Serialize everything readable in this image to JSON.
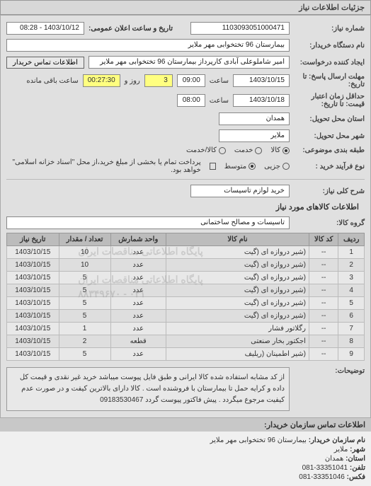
{
  "header": {
    "title": "جزئیات اطلاعات نیاز"
  },
  "form": {
    "req_number_label": "شماره نیاز:",
    "req_number": "1103093051000471",
    "announce_label": "تاریخ و ساعت اعلان عمومی:",
    "announce_value": "1403/10/12 - 08:28",
    "buyer_label": "نام دستگاه خریدار:",
    "buyer_value": "بیمارستان 96 تختخوابی مهر ملایر",
    "creator_label": "ایجاد کننده درخواست:",
    "creator_value": "امیر شاملوعلی آبادی کارپرداز بیمارستان 96 تختخوابی مهر ملایر",
    "contact_btn": "اطلاعات تماس خریدار",
    "send_deadline_label": "مهلت ارسال پاسخ: تا تاریخ:",
    "send_date": "1403/10/15",
    "time_label": "ساعت",
    "send_time": "09:00",
    "days_label": "روز و",
    "days_value": "3",
    "remain_time": "00:27:30",
    "remain_label": "ساعت باقی مانده",
    "validity_label": "حداقل زمان اعتبار قیمت: تا تاریخ:",
    "validity_date": "1403/10/18",
    "validity_time": "08:00",
    "delivery_state_label": "استان محل تحویل:",
    "delivery_state": "همدان",
    "delivery_city_label": "شهر محل تحویل:",
    "delivery_city": "ملایر",
    "classification_label": "طبقه بندی موضوعی:",
    "class_goods": "کالا",
    "class_service": "خدمت",
    "class_both": "کالا/خدمت",
    "process_label": "نوع فرآیند خرید :",
    "proc_small": "جزیی",
    "proc_medium": "متوسط",
    "proc_payment_note": "پرداخت تمام یا بخشی از مبلغ خرید،از محل \"اسناد خزانه اسلامی\" خواهد بود.",
    "need_desc_label": "شرح کلی نیاز:",
    "need_desc": "خرید لوازم تاسیسات",
    "goods_section": "اطلاعات کالاهای مورد نیاز",
    "goods_group_label": "گروه کالا:",
    "goods_group": "تاسیسات و مصالح ساختمانی"
  },
  "table": {
    "headers": {
      "row": "ردیف",
      "code": "کد کالا",
      "name": "نام کالا",
      "unit": "واحد شمارش",
      "qty": "تعداد / مقدار",
      "date": "تاریخ نیاز"
    },
    "rows": [
      {
        "n": "1",
        "code": "--",
        "name": "(شیر دروازه ای (گیت",
        "unit": "عدد",
        "qty": "10",
        "date": "1403/10/15"
      },
      {
        "n": "2",
        "code": "--",
        "name": "(شیر دروازه ای (گیت",
        "unit": "عدد",
        "qty": "10",
        "date": "1403/10/15"
      },
      {
        "n": "3",
        "code": "--",
        "name": "(شیر دروازه ای (گیت",
        "unit": "عدد",
        "qty": "5",
        "date": "1403/10/15"
      },
      {
        "n": "4",
        "code": "--",
        "name": "(شیر دروازه ای (گیت",
        "unit": "عدد",
        "qty": "5",
        "date": "1403/10/15"
      },
      {
        "n": "5",
        "code": "--",
        "name": "(شیر دروازه ای (گیت",
        "unit": "عدد",
        "qty": "5",
        "date": "1403/10/15"
      },
      {
        "n": "6",
        "code": "--",
        "name": "(شیر دروازه ای (گیت",
        "unit": "عدد",
        "qty": "5",
        "date": "1403/10/15"
      },
      {
        "n": "7",
        "code": "--",
        "name": "رگلاتور فشار",
        "unit": "عدد",
        "qty": "1",
        "date": "1403/10/15"
      },
      {
        "n": "8",
        "code": "--",
        "name": "اجکتور بخار صنعتی",
        "unit": "قطعه",
        "qty": "2",
        "date": "1403/10/15"
      },
      {
        "n": "9",
        "code": "--",
        "name": "(شیر اطمینان (ریلیف",
        "unit": "عدد",
        "qty": "5",
        "date": "1403/10/15"
      }
    ],
    "watermarks": [
      "پایگاه اطلاعاتی مناقصات ایران",
      "پایگاه اطلاعاتی مناقصات ایران",
      "۰۲۱ - ۸۸۳۴۹۶۷۰"
    ]
  },
  "desc": {
    "label": "توضیحات:",
    "text": "از کد مشابه استفاده شده کالا ایرانی و طبق فایل پیوست میباشد خرید غیر نقدی و قیمت کل داده و کرایه حمل تا بیمارستان با فروشنده است . کالا دارای بالاترین کیفت و در صورت عدم کیفیت مرجوع میگردد . پیش فاکتور پیوست گردد 09183530467"
  },
  "contact": {
    "title": "اطلاعات تماس سازمان خریدار:",
    "org_label": "نام سازمان خریدار:",
    "org": "بیمارستان 96 تختخوابی مهر ملایر",
    "city_label": "شهر:",
    "city": "ملایر",
    "state_label": "استان:",
    "state": "همدان",
    "phone_label": "تلفن:",
    "phone": "33351041-081",
    "fax_label": "فکس:",
    "fax": "33351046-081"
  }
}
